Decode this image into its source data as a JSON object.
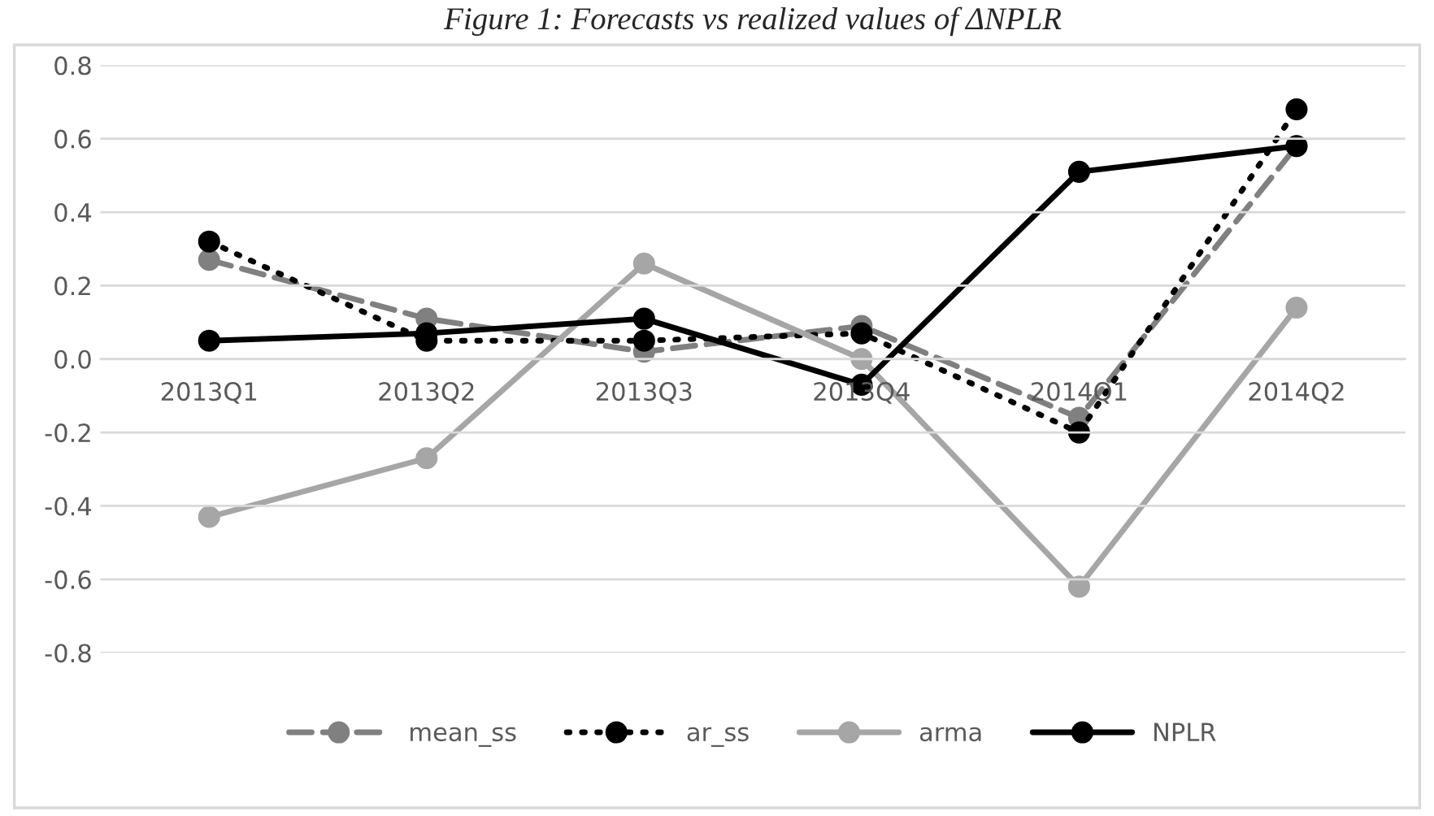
{
  "chart_data": {
    "type": "line",
    "title": "Figure 1: Forecasts vs realized values of ΔNPLR",
    "categories": [
      "2013Q1",
      "2013Q2",
      "2013Q3",
      "2013Q4",
      "2014Q1",
      "2014Q2"
    ],
    "series": [
      {
        "name": "mean_ss",
        "color": "#808080",
        "line_style": "dashed",
        "values": [
          0.27,
          0.11,
          0.02,
          0.09,
          -0.16,
          0.58
        ]
      },
      {
        "name": "ar_ss",
        "color": "#000000",
        "line_style": "dotted",
        "values": [
          0.32,
          0.05,
          0.05,
          0.07,
          -0.2,
          0.68
        ]
      },
      {
        "name": "arma",
        "color": "#a6a6a6",
        "line_style": "solid",
        "values": [
          -0.43,
          -0.27,
          0.26,
          0.0,
          -0.62,
          0.14
        ]
      },
      {
        "name": "NPLR",
        "color": "#000000",
        "line_style": "solid",
        "values": [
          0.05,
          0.07,
          0.11,
          -0.07,
          0.51,
          0.58
        ]
      }
    ],
    "ylim": [
      -0.8,
      0.8
    ],
    "yticks": [
      {
        "value": -0.8,
        "label": "-0.8"
      },
      {
        "value": -0.6,
        "label": "-0.6"
      },
      {
        "value": -0.4,
        "label": "-0.4"
      },
      {
        "value": -0.2,
        "label": "-0.2"
      },
      {
        "value": 0.0,
        "label": "0.0"
      },
      {
        "value": 0.2,
        "label": "0.2"
      },
      {
        "value": 0.4,
        "label": "0.4"
      },
      {
        "value": 0.6,
        "label": "0.6"
      },
      {
        "value": 0.8,
        "label": "0.8"
      }
    ],
    "grid": "y",
    "legend": "bottom",
    "marker": "circle"
  }
}
